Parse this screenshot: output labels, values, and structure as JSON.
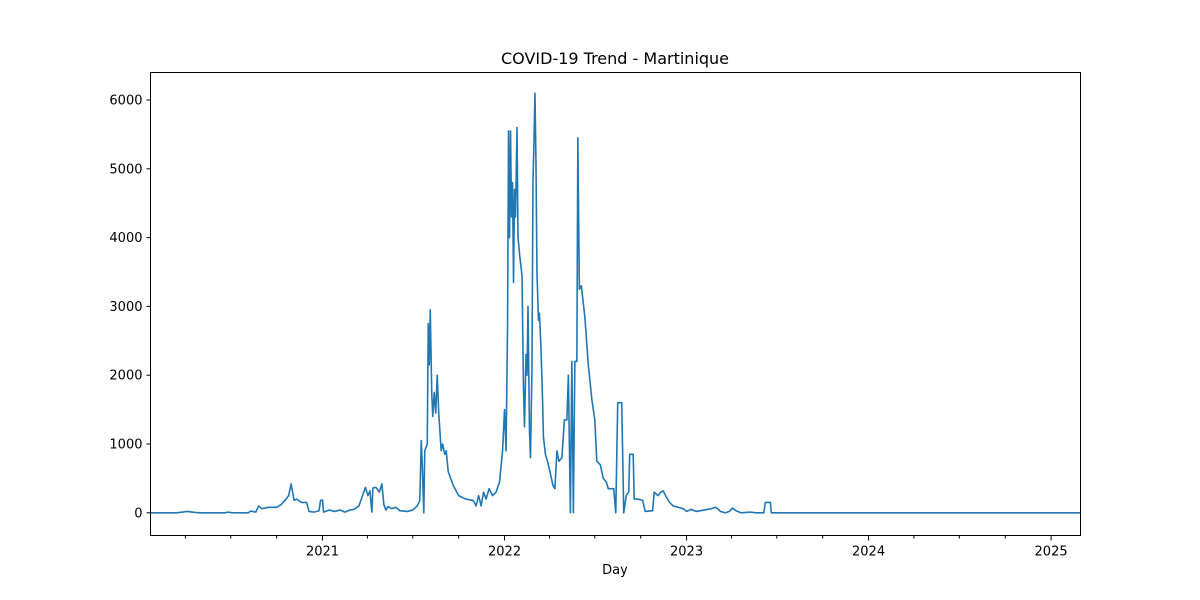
{
  "chart_data": {
    "type": "line",
    "title": "COVID-19 Trend - Martinique",
    "xlabel": "Day",
    "ylabel": "",
    "x_range": [
      "2020-01-22",
      "2025-03-01"
    ],
    "ylim": [
      -330,
      6400
    ],
    "y_ticks": [
      0,
      1000,
      2000,
      3000,
      4000,
      5000,
      6000
    ],
    "x_major_ticks": [
      {
        "date": "2021-01-01",
        "label": "2021"
      },
      {
        "date": "2022-01-01",
        "label": "2022"
      },
      {
        "date": "2023-01-01",
        "label": "2023"
      },
      {
        "date": "2024-01-01",
        "label": "2024"
      },
      {
        "date": "2025-01-01",
        "label": "2025"
      }
    ],
    "x_minor_ticks": [
      "2020-04-01",
      "2020-07-01",
      "2020-10-01",
      "2021-04-01",
      "2021-07-01",
      "2021-10-01",
      "2022-04-01",
      "2022-07-01",
      "2022-10-01",
      "2023-04-01",
      "2023-07-01",
      "2023-10-01",
      "2024-04-01",
      "2024-07-01",
      "2024-10-01"
    ],
    "grid": false,
    "legend": "none",
    "series": [
      {
        "color": "#1f77b4",
        "points": [
          [
            "2020-01-22",
            0
          ],
          [
            "2020-03-15",
            0
          ],
          [
            "2020-04-05",
            20
          ],
          [
            "2020-04-20",
            5
          ],
          [
            "2020-05-01",
            0
          ],
          [
            "2020-06-20",
            0
          ],
          [
            "2020-06-25",
            10
          ],
          [
            "2020-07-05",
            0
          ],
          [
            "2020-08-05",
            0
          ],
          [
            "2020-08-10",
            25
          ],
          [
            "2020-08-20",
            10
          ],
          [
            "2020-08-26",
            100
          ],
          [
            "2020-09-01",
            60
          ],
          [
            "2020-09-15",
            80
          ],
          [
            "2020-10-01",
            80
          ],
          [
            "2020-10-10",
            120
          ],
          [
            "2020-10-20",
            200
          ],
          [
            "2020-10-25",
            250
          ],
          [
            "2020-10-30",
            420
          ],
          [
            "2020-11-02",
            300
          ],
          [
            "2020-11-05",
            180
          ],
          [
            "2020-11-10",
            200
          ],
          [
            "2020-11-20",
            150
          ],
          [
            "2020-11-30",
            150
          ],
          [
            "2020-12-05",
            20
          ],
          [
            "2020-12-15",
            10
          ],
          [
            "2020-12-25",
            30
          ],
          [
            "2020-12-28",
            180
          ],
          [
            "2021-01-01",
            185
          ],
          [
            "2021-01-03",
            10
          ],
          [
            "2021-01-15",
            40
          ],
          [
            "2021-01-25",
            20
          ],
          [
            "2021-02-05",
            40
          ],
          [
            "2021-02-15",
            10
          ],
          [
            "2021-02-25",
            40
          ],
          [
            "2021-03-05",
            50
          ],
          [
            "2021-03-15",
            100
          ],
          [
            "2021-03-28",
            370
          ],
          [
            "2021-04-02",
            250
          ],
          [
            "2021-04-06",
            320
          ],
          [
            "2021-04-10",
            10
          ],
          [
            "2021-04-12",
            360
          ],
          [
            "2021-04-18",
            370
          ],
          [
            "2021-04-25",
            300
          ],
          [
            "2021-04-30",
            420
          ],
          [
            "2021-05-04",
            120
          ],
          [
            "2021-05-08",
            40
          ],
          [
            "2021-05-12",
            90
          ],
          [
            "2021-05-20",
            60
          ],
          [
            "2021-05-28",
            80
          ],
          [
            "2021-06-05",
            30
          ],
          [
            "2021-06-20",
            20
          ],
          [
            "2021-07-01",
            40
          ],
          [
            "2021-07-10",
            100
          ],
          [
            "2021-07-15",
            180
          ],
          [
            "2021-07-18",
            1050
          ],
          [
            "2021-07-20",
            700
          ],
          [
            "2021-07-23",
            0
          ],
          [
            "2021-07-25",
            900
          ],
          [
            "2021-07-30",
            1000
          ],
          [
            "2021-08-01",
            2750
          ],
          [
            "2021-08-03",
            2150
          ],
          [
            "2021-08-05",
            2950
          ],
          [
            "2021-08-08",
            1750
          ],
          [
            "2021-08-10",
            1400
          ],
          [
            "2021-08-13",
            1750
          ],
          [
            "2021-08-16",
            1450
          ],
          [
            "2021-08-19",
            2000
          ],
          [
            "2021-08-22",
            1450
          ],
          [
            "2021-08-27",
            900
          ],
          [
            "2021-08-30",
            1000
          ],
          [
            "2021-09-03",
            850
          ],
          [
            "2021-09-06",
            900
          ],
          [
            "2021-09-10",
            600
          ],
          [
            "2021-09-20",
            400
          ],
          [
            "2021-10-01",
            250
          ],
          [
            "2021-10-15",
            200
          ],
          [
            "2021-10-30",
            180
          ],
          [
            "2021-11-05",
            100
          ],
          [
            "2021-11-10",
            250
          ],
          [
            "2021-11-15",
            100
          ],
          [
            "2021-11-20",
            300
          ],
          [
            "2021-11-25",
            200
          ],
          [
            "2021-12-01",
            350
          ],
          [
            "2021-12-08",
            250
          ],
          [
            "2021-12-15",
            300
          ],
          [
            "2021-12-22",
            450
          ],
          [
            "2021-12-28",
            900
          ],
          [
            "2022-01-01",
            1500
          ],
          [
            "2022-01-04",
            900
          ],
          [
            "2022-01-07",
            2700
          ],
          [
            "2022-01-09",
            5550
          ],
          [
            "2022-01-11",
            4000
          ],
          [
            "2022-01-13",
            5550
          ],
          [
            "2022-01-15",
            4300
          ],
          [
            "2022-01-17",
            4800
          ],
          [
            "2022-01-19",
            3350
          ],
          [
            "2022-01-21",
            4700
          ],
          [
            "2022-01-23",
            4300
          ],
          [
            "2022-01-26",
            5600
          ],
          [
            "2022-01-28",
            4000
          ],
          [
            "2022-02-01",
            3700
          ],
          [
            "2022-02-05",
            3450
          ],
          [
            "2022-02-08",
            1800
          ],
          [
            "2022-02-10",
            1250
          ],
          [
            "2022-02-13",
            2300
          ],
          [
            "2022-02-15",
            2000
          ],
          [
            "2022-02-17",
            3000
          ],
          [
            "2022-02-20",
            1200
          ],
          [
            "2022-02-22",
            800
          ],
          [
            "2022-02-25",
            2100
          ],
          [
            "2022-02-27",
            4800
          ],
          [
            "2022-03-01",
            5400
          ],
          [
            "2022-03-03",
            6100
          ],
          [
            "2022-03-05",
            5100
          ],
          [
            "2022-03-07",
            3500
          ],
          [
            "2022-03-10",
            2800
          ],
          [
            "2022-03-12",
            2900
          ],
          [
            "2022-03-15",
            2400
          ],
          [
            "2022-03-18",
            1700
          ],
          [
            "2022-03-20",
            1100
          ],
          [
            "2022-03-24",
            850
          ],
          [
            "2022-03-28",
            750
          ],
          [
            "2022-04-02",
            600
          ],
          [
            "2022-04-08",
            400
          ],
          [
            "2022-04-12",
            350
          ],
          [
            "2022-04-16",
            900
          ],
          [
            "2022-04-20",
            750
          ],
          [
            "2022-04-26",
            800
          ],
          [
            "2022-05-01",
            1350
          ],
          [
            "2022-05-06",
            1350
          ],
          [
            "2022-05-09",
            2000
          ],
          [
            "2022-05-13",
            0
          ],
          [
            "2022-05-16",
            2200
          ],
          [
            "2022-05-19",
            0
          ],
          [
            "2022-05-22",
            2200
          ],
          [
            "2022-05-26",
            2200
          ],
          [
            "2022-05-28",
            5450
          ],
          [
            "2022-05-31",
            3250
          ],
          [
            "2022-06-04",
            3300
          ],
          [
            "2022-06-11",
            2850
          ],
          [
            "2022-06-18",
            2150
          ],
          [
            "2022-06-25",
            1650
          ],
          [
            "2022-07-01",
            1350
          ],
          [
            "2022-07-05",
            750
          ],
          [
            "2022-07-12",
            700
          ],
          [
            "2022-07-18",
            500
          ],
          [
            "2022-07-24",
            450
          ],
          [
            "2022-07-28",
            350
          ],
          [
            "2022-08-08",
            350
          ],
          [
            "2022-08-12",
            0
          ],
          [
            "2022-08-16",
            1600
          ],
          [
            "2022-08-24",
            1600
          ],
          [
            "2022-08-28",
            0
          ],
          [
            "2022-09-02",
            250
          ],
          [
            "2022-09-07",
            300
          ],
          [
            "2022-09-09",
            850
          ],
          [
            "2022-09-16",
            850
          ],
          [
            "2022-09-18",
            200
          ],
          [
            "2022-09-25",
            200
          ],
          [
            "2022-10-05",
            180
          ],
          [
            "2022-10-10",
            20
          ],
          [
            "2022-10-25",
            30
          ],
          [
            "2022-10-28",
            300
          ],
          [
            "2022-11-05",
            250
          ],
          [
            "2022-11-10",
            300
          ],
          [
            "2022-11-15",
            320
          ],
          [
            "2022-11-20",
            250
          ],
          [
            "2022-11-28",
            150
          ],
          [
            "2022-12-05",
            100
          ],
          [
            "2022-12-15",
            80
          ],
          [
            "2022-12-25",
            60
          ],
          [
            "2023-01-01",
            20
          ],
          [
            "2023-01-10",
            50
          ],
          [
            "2023-01-20",
            20
          ],
          [
            "2023-02-05",
            40
          ],
          [
            "2023-02-20",
            60
          ],
          [
            "2023-03-01",
            80
          ],
          [
            "2023-03-10",
            20
          ],
          [
            "2023-03-20",
            0
          ],
          [
            "2023-03-28",
            20
          ],
          [
            "2023-04-03",
            70
          ],
          [
            "2023-04-10",
            30
          ],
          [
            "2023-04-20",
            0
          ],
          [
            "2023-05-10",
            10
          ],
          [
            "2023-05-20",
            0
          ],
          [
            "2023-06-05",
            0
          ],
          [
            "2023-06-08",
            150
          ],
          [
            "2023-06-18",
            150
          ],
          [
            "2023-06-20",
            0
          ],
          [
            "2025-03-01",
            0
          ]
        ]
      }
    ]
  }
}
